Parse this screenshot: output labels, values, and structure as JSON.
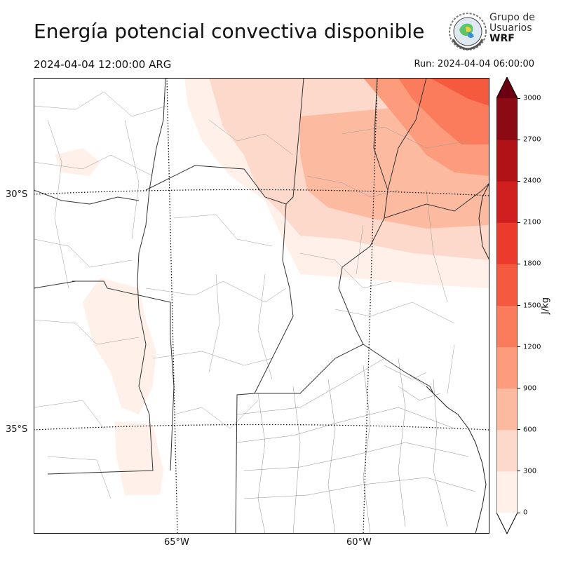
{
  "title": "Energía potencial convectiva disponible",
  "valid_time": "2024-04-04 12:00:00 ARG",
  "run_time": "Run: 2024-04-04 06:00:00",
  "logo": {
    "line1": "Grupo de",
    "line2": "Usuarios",
    "line3": "WRF",
    "icon": "globe-emblem-icon"
  },
  "map": {
    "latitude_labels": [
      "30°S",
      "35°S"
    ],
    "longitude_labels": [
      "65°W",
      "60°W"
    ]
  },
  "colorbar": {
    "unit": "J/kg",
    "ticks": [
      "0",
      "300",
      "600",
      "900",
      "1200",
      "1500",
      "1800",
      "2100",
      "2400",
      "2700",
      "3000"
    ],
    "colors": [
      "#fff0e9",
      "#fdd9cb",
      "#fcbba1",
      "#fc9c7d",
      "#fb7c5c",
      "#f55a3e",
      "#ec3b2c",
      "#d11f20",
      "#b01217",
      "#8c0a14",
      "#6b0010"
    ],
    "extends": "both"
  }
}
